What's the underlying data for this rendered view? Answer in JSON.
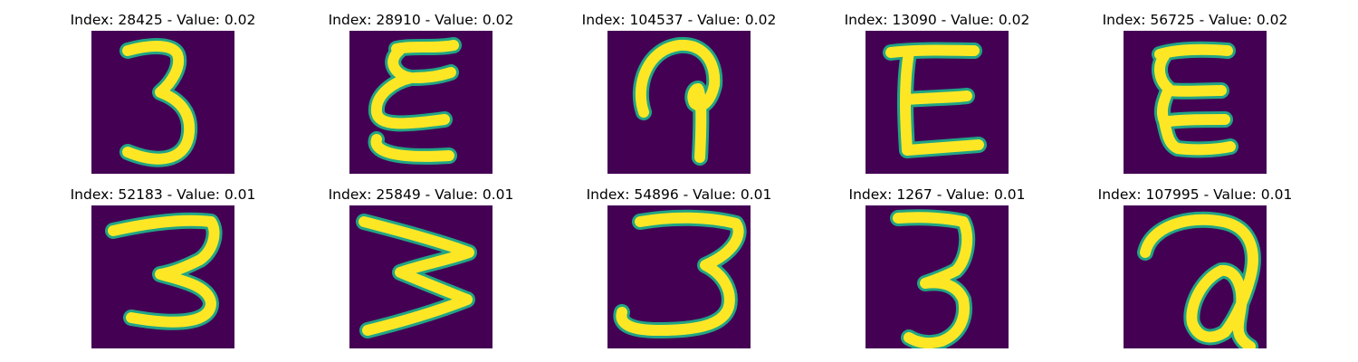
{
  "colors": {
    "background": "#440154",
    "stroke_core": "#fde725",
    "stroke_edge": "#21a585"
  },
  "panels": [
    {
      "title": "Index: 28425 - Value: 0.02",
      "glyph": "digit-three-glyph"
    },
    {
      "title": "Index: 28910 - Value: 0.02",
      "glyph": "epsilon-glyph"
    },
    {
      "title": "Index: 104537 - Value: 0.02",
      "glyph": "hook-glyph"
    },
    {
      "title": "Index: 13090 - Value: 0.02",
      "glyph": "letter-e-glyph"
    },
    {
      "title": "Index: 56725 - Value: 0.02",
      "glyph": "letter-e-glyph"
    },
    {
      "title": "Index: 52183 - Value: 0.01",
      "glyph": "digit-three-glyph"
    },
    {
      "title": "Index: 25849 - Value: 0.01",
      "glyph": "rotated-w-glyph"
    },
    {
      "title": "Index: 54896 - Value: 0.01",
      "glyph": "digit-three-glyph"
    },
    {
      "title": "Index: 1267 - Value: 0.01",
      "glyph": "digit-three-glyph"
    },
    {
      "title": "Index: 107995 - Value: 0.01",
      "glyph": "letter-a-glyph"
    }
  ]
}
